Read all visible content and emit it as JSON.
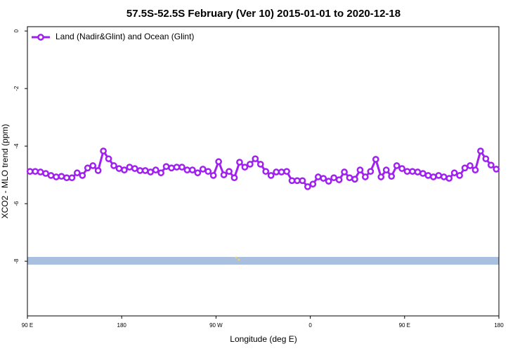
{
  "chart_data": {
    "type": "line",
    "title": "57.5S-52.5S February (Ver 10)   2015-01-01 to 2020-12-18",
    "x_label": "Longitude (deg E)",
    "y_label": "XCO2 - MLO trend (ppm)",
    "xlim": [
      90,
      540
    ],
    "xticks": [
      {
        "value": 90,
        "label": "90 E"
      },
      {
        "value": 180,
        "label": "180"
      },
      {
        "value": 270,
        "label": "90 W"
      },
      {
        "value": 360,
        "label": "0"
      },
      {
        "value": 450,
        "label": "90 E"
      },
      {
        "value": 540,
        "label": "180"
      }
    ],
    "ylim": [
      -9.9,
      0.15
    ],
    "yticks": [
      0,
      -2,
      -4,
      -6,
      -8
    ],
    "legend_position": "top-left",
    "series": [
      {
        "name": "Land (Nadir&Glint) and Ocean (Glint)",
        "color": "#a020f0",
        "x": [
          92.5,
          97.5,
          102.5,
          107.5,
          112.5,
          117.5,
          122.5,
          127.5,
          132.5,
          137.5,
          142.5,
          147.5,
          152.5,
          157.5,
          162.5,
          167.5,
          172.5,
          177.5,
          182.5,
          187.5,
          192.5,
          197.5,
          202.5,
          207.5,
          212.5,
          217.5,
          222.5,
          227.5,
          232.5,
          237.5,
          242.5,
          247.5,
          252.5,
          257.5,
          262.5,
          267.5,
          272.5,
          277.5,
          282.5,
          287.5,
          292.5,
          297.5,
          302.5,
          307.5,
          312.5,
          317.5,
          322.5,
          327.5,
          332.5,
          337.5,
          342.5,
          347.5,
          352.5,
          357.5,
          362.5,
          367.5,
          372.5,
          377.5,
          382.5,
          387.5,
          392.5,
          397.5,
          402.5,
          407.5,
          412.5,
          417.5,
          422.5,
          427.5,
          432.5,
          437.5,
          442.5,
          447.5,
          452.5,
          457.5,
          462.5,
          467.5,
          472.5,
          477.5,
          482.5,
          487.5,
          492.5,
          497.5,
          502.5,
          507.5,
          512.5,
          517.5,
          522.5,
          527.5,
          532.5,
          537.5
        ],
        "values": [
          -4.88,
          -4.88,
          -4.9,
          -4.95,
          -5.02,
          -5.07,
          -5.05,
          -5.1,
          -5.1,
          -4.93,
          -5.02,
          -4.76,
          -4.68,
          -4.85,
          -4.17,
          -4.44,
          -4.68,
          -4.78,
          -4.83,
          -4.73,
          -4.78,
          -4.85,
          -4.85,
          -4.9,
          -4.83,
          -4.93,
          -4.71,
          -4.76,
          -4.73,
          -4.73,
          -4.83,
          -4.83,
          -4.93,
          -4.8,
          -4.88,
          -5.02,
          -4.54,
          -5.0,
          -4.88,
          -5.1,
          -4.56,
          -4.73,
          -4.63,
          -4.44,
          -4.63,
          -4.88,
          -5.02,
          -4.9,
          -4.9,
          -4.88,
          -5.2,
          -5.2,
          -5.2,
          -5.41,
          -5.32,
          -5.07,
          -5.12,
          -5.22,
          -5.1,
          -5.17,
          -4.9,
          -5.1,
          -5.15,
          -4.83,
          -5.07,
          -4.88,
          -4.46,
          -5.07,
          -4.83,
          -5.05,
          -4.68,
          -4.78,
          -4.88,
          -4.88,
          -4.9,
          -4.95,
          -5.02,
          -5.07,
          -5.02,
          -5.07,
          -5.12,
          -4.93,
          -5.02,
          -4.76,
          -4.68,
          -4.83,
          -4.17,
          -4.44,
          -4.66,
          -4.8
        ]
      }
    ]
  }
}
